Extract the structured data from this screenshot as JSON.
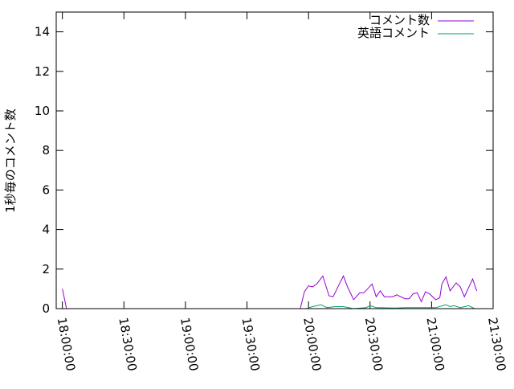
{
  "chart_data": {
    "type": "line",
    "title": "",
    "xlabel": "",
    "ylabel": "1秒毎のコメント数",
    "xlim": [
      "17:57:00",
      "21:30:00"
    ],
    "ylim": [
      0,
      15
    ],
    "grid": false,
    "legend": "top-right",
    "x_ticks": [
      "18:00:00",
      "18:30:00",
      "19:00:00",
      "19:30:00",
      "20:00:00",
      "20:30:00",
      "21:00:00",
      "21:30:00"
    ],
    "y_ticks": [
      "0",
      "2",
      "4",
      "6",
      "8",
      "10",
      "12",
      "14"
    ],
    "series": [
      {
        "name": "コメント数",
        "color": "#9400d3",
        "points": [
          [
            "18:00:00",
            1
          ],
          [
            "18:02:00",
            0
          ],
          [
            "19:51:00",
            0
          ],
          [
            "19:56:00",
            0
          ],
          [
            "19:58:00",
            0.85
          ],
          [
            "20:00:00",
            1.15
          ],
          [
            "20:02:00",
            1.1
          ],
          [
            "20:04:00",
            1.25
          ],
          [
            "20:07:00",
            1.65
          ],
          [
            "20:08:00",
            1.3
          ],
          [
            "20:10:00",
            0.65
          ],
          [
            "20:12:00",
            0.6
          ],
          [
            "20:15:00",
            1.25
          ],
          [
            "20:17:00",
            1.65
          ],
          [
            "20:19:00",
            1.1
          ],
          [
            "20:22:00",
            0.45
          ],
          [
            "20:25:00",
            0.8
          ],
          [
            "20:27:00",
            0.8
          ],
          [
            "20:31:00",
            1.25
          ],
          [
            "20:33:00",
            0.6
          ],
          [
            "20:35:00",
            0.9
          ],
          [
            "20:37:00",
            0.6
          ],
          [
            "20:41:00",
            0.6
          ],
          [
            "20:43:00",
            0.7
          ],
          [
            "20:47:00",
            0.5
          ],
          [
            "20:49:00",
            0.5
          ],
          [
            "20:51:00",
            0.75
          ],
          [
            "20:53:00",
            0.8
          ],
          [
            "20:55:00",
            0.35
          ],
          [
            "20:57:00",
            0.85
          ],
          [
            "20:59:00",
            0.75
          ],
          [
            "21:02:00",
            0.45
          ],
          [
            "21:04:00",
            0.55
          ],
          [
            "21:05:00",
            1.25
          ],
          [
            "21:07:00",
            1.6
          ],
          [
            "21:09:00",
            0.9
          ],
          [
            "21:12:00",
            1.3
          ],
          [
            "21:14:00",
            1.1
          ],
          [
            "21:16:00",
            0.6
          ],
          [
            "21:20:00",
            1.5
          ],
          [
            "21:22:00",
            0.9
          ]
        ]
      },
      {
        "name": "英語コメント",
        "color": "#009e73",
        "points": [
          [
            "19:59:00",
            0
          ],
          [
            "20:02:00",
            0.1
          ],
          [
            "20:06:00",
            0.2
          ],
          [
            "20:09:00",
            0.05
          ],
          [
            "20:13:00",
            0.1
          ],
          [
            "20:17:00",
            0.1
          ],
          [
            "20:22:00",
            0
          ],
          [
            "20:28:00",
            0.05
          ],
          [
            "20:30:00",
            0.15
          ],
          [
            "20:33:00",
            0.05
          ],
          [
            "20:42:00",
            0.03
          ],
          [
            "20:48:00",
            0.05
          ],
          [
            "20:53:00",
            0.05
          ],
          [
            "21:02:00",
            0.05
          ],
          [
            "21:07:00",
            0.2
          ],
          [
            "21:09:00",
            0.1
          ],
          [
            "21:11:00",
            0.15
          ],
          [
            "21:14:00",
            0.05
          ],
          [
            "21:18:00",
            0.15
          ],
          [
            "21:21:00",
            0
          ]
        ]
      }
    ]
  }
}
